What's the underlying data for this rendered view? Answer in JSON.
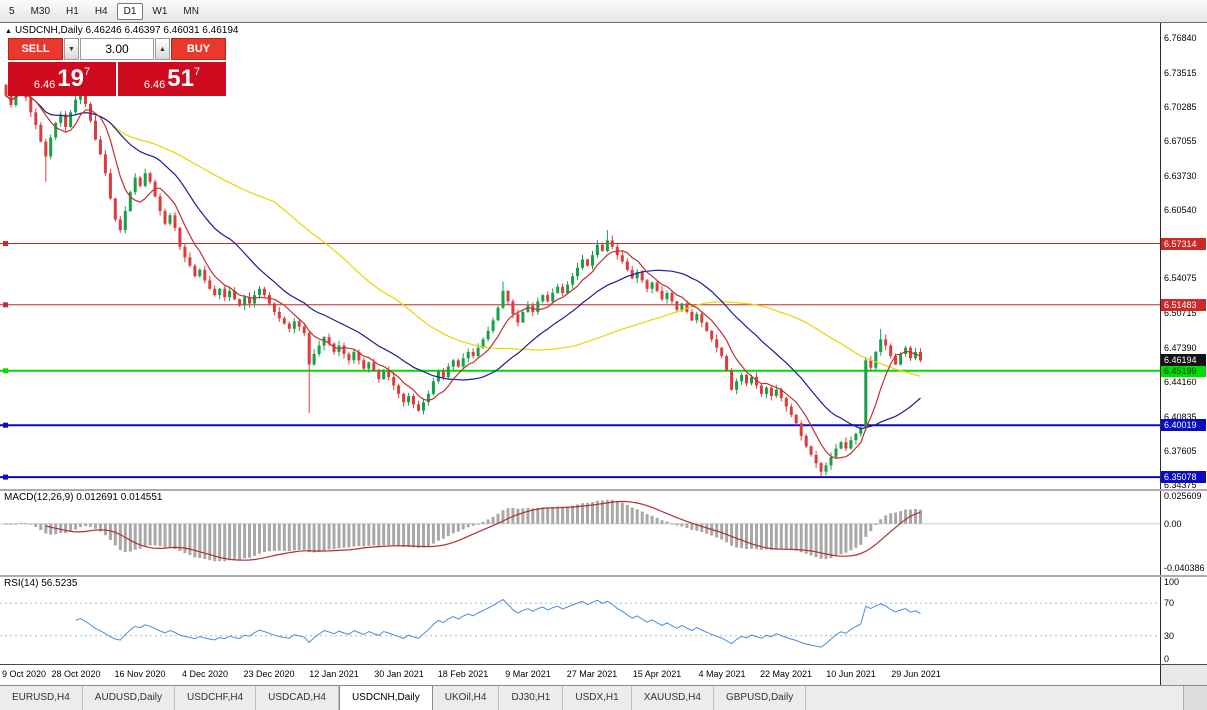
{
  "toolbar": {
    "timeframes": [
      {
        "label": "5",
        "active": false
      },
      {
        "label": "M30",
        "active": false
      },
      {
        "label": "H1",
        "active": false
      },
      {
        "label": "H4",
        "active": false
      },
      {
        "label": "D1",
        "active": true
      },
      {
        "label": "W1",
        "active": false
      },
      {
        "label": "MN",
        "active": false
      }
    ]
  },
  "chart": {
    "collapse_icon": "▲",
    "symbol_header": "USDCNH,Daily",
    "ohlc": "6.46246 6.46397 6.46031 6.46194",
    "trade_panel": {
      "sell_label": "SELL",
      "buy_label": "BUY",
      "volume": "3.00",
      "spin_down_icon": "▼",
      "spin_up_icon": "▲",
      "sell_price": {
        "prefix": "6.46",
        "big": "19",
        "sup": "7"
      },
      "buy_price": {
        "prefix": "6.46",
        "big": "51",
        "sup": "7"
      }
    },
    "scale": {
      "min": 6.3395,
      "max": 6.783
    },
    "price_axis": {
      "ticks": [
        6.7684,
        6.73515,
        6.70285,
        6.67055,
        6.6373,
        6.6054,
        6.54075,
        6.50715,
        6.4739,
        6.4416,
        6.40835,
        6.37605,
        6.34375
      ],
      "current_badge": {
        "label": "6.46194",
        "price": 6.46194,
        "bg": "#111111",
        "fg": "#ffffff"
      },
      "level_badges": [
        {
          "label": "6.57314",
          "price": 6.57314,
          "bg": "#cc2929",
          "fg": "#ffffff"
        },
        {
          "label": "6.51483",
          "price": 6.51483,
          "bg": "#cc2929",
          "fg": "#ffffff"
        },
        {
          "label": "6.45199",
          "price": 6.45199,
          "bg": "#00dc00",
          "fg": "#003300"
        },
        {
          "label": "6.40019",
          "price": 6.40019,
          "bg": "#0a0ac0",
          "fg": "#ffffff"
        },
        {
          "label": "6.35078",
          "price": 6.35078,
          "bg": "#0a0ac0",
          "fg": "#ffffff"
        }
      ]
    },
    "hlines": [
      {
        "price": 6.57314,
        "color": "#cc2929",
        "width": 1
      },
      {
        "price": 6.51483,
        "color": "#cc2929",
        "width": 1
      },
      {
        "price": 6.45199,
        "color": "#00dc00",
        "width": 2
      },
      {
        "price": 6.40019,
        "color": "#0a0ac0",
        "width": 2
      },
      {
        "price": 6.35078,
        "color": "#0a0ac0",
        "width": 2
      }
    ],
    "candles": {
      "up_color": "#16a049",
      "down_color": "#dd3c3c",
      "first_open": 6.724,
      "closes": [
        6.714,
        6.705,
        6.718,
        6.726,
        6.712,
        6.698,
        6.686,
        6.67,
        6.656,
        6.674,
        6.688,
        6.696,
        6.684,
        6.698,
        6.71,
        6.718,
        6.706,
        6.69,
        6.672,
        6.658,
        6.64,
        6.616,
        6.596,
        6.586,
        6.604,
        6.622,
        6.636,
        6.628,
        6.64,
        6.632,
        6.618,
        6.604,
        6.592,
        6.6,
        6.588,
        6.57,
        6.56,
        6.552,
        6.542,
        6.548,
        6.538,
        6.53,
        6.524,
        6.53,
        6.522,
        6.528,
        6.52,
        6.514,
        6.522,
        6.516,
        6.524,
        6.53,
        6.524,
        6.516,
        6.508,
        6.502,
        6.497,
        6.492,
        6.499,
        6.494,
        6.488,
        6.458,
        6.468,
        6.476,
        6.484,
        6.478,
        6.47,
        6.476,
        6.468,
        6.462,
        6.47,
        6.462,
        6.454,
        6.46,
        6.452,
        6.444,
        6.452,
        6.446,
        6.438,
        6.43,
        6.422,
        6.428,
        6.42,
        6.414,
        6.422,
        6.43,
        6.442,
        6.452,
        6.446,
        6.456,
        6.462,
        6.456,
        6.464,
        6.47,
        6.466,
        6.474,
        6.482,
        6.49,
        6.5,
        6.512,
        6.528,
        6.518,
        6.506,
        6.498,
        6.508,
        6.514,
        6.508,
        6.518,
        6.524,
        6.518,
        6.526,
        6.532,
        6.526,
        6.534,
        6.542,
        6.55,
        6.558,
        6.552,
        6.562,
        6.572,
        6.566,
        6.576,
        6.57,
        6.562,
        6.556,
        6.548,
        6.54,
        6.546,
        6.538,
        6.53,
        6.536,
        6.528,
        6.52,
        6.526,
        6.518,
        6.51,
        6.516,
        6.508,
        6.5,
        6.506,
        6.498,
        6.49,
        6.482,
        6.474,
        6.466,
        6.452,
        6.434,
        6.442,
        6.448,
        6.44,
        6.446,
        6.438,
        6.43,
        6.436,
        6.428,
        6.434,
        6.426,
        6.418,
        6.41,
        6.402,
        6.39,
        6.38,
        6.372,
        6.364,
        6.356,
        6.362,
        6.37,
        6.378,
        6.384,
        6.378,
        6.386,
        6.392,
        6.398,
        6.462,
        6.455,
        6.47,
        6.482,
        6.476,
        6.466,
        6.458,
        6.468,
        6.474,
        6.464,
        6.47,
        6.46194
      ],
      "wick_overrides": {
        "3": {
          "high": 6.736
        },
        "8": {
          "low": 6.632
        },
        "61": {
          "low": 6.412
        },
        "100": {
          "high": 6.537
        },
        "121": {
          "high": 6.586
        },
        "164": {
          "low": 6.351
        },
        "176": {
          "high": 6.492
        }
      }
    },
    "mas": [
      {
        "period": 55,
        "color": "#e7d600"
      },
      {
        "period": 22,
        "color": "#1c1c96"
      },
      {
        "period": 7,
        "color": "#c22f2f"
      }
    ]
  },
  "macd": {
    "header": "MACD(12,26,9) 0.012691 0.014551",
    "params": {
      "fast": 12,
      "slow": 26,
      "signal": 9
    },
    "range": {
      "min": -0.047,
      "max": 0.03
    },
    "histogram_color": "#a8a8a8",
    "signal_color": "#b03030",
    "axis_labels": [
      {
        "text": "0.025609",
        "value": 0.025609
      },
      {
        "text": "0.00",
        "value": 0
      },
      {
        "text": "-0.040386",
        "value": -0.040386
      }
    ]
  },
  "rsi": {
    "header": "RSI(14) 56.5235",
    "period": 14,
    "line_color": "#4a90d8",
    "dashed_color": "#a8b8cc",
    "levels": [
      {
        "text": "100",
        "value": 100,
        "dashed": false
      },
      {
        "text": "70",
        "value": 70,
        "dashed": true
      },
      {
        "text": "30",
        "value": 30,
        "dashed": true
      },
      {
        "text": "0",
        "value": 0,
        "dashed": false
      }
    ]
  },
  "time_axis": {
    "labels": [
      {
        "text": "9 Oct 2020",
        "candle": 1
      },
      {
        "text": "28 Oct 2020",
        "candle": 14
      },
      {
        "text": "16 Nov 2020",
        "candle": 27
      },
      {
        "text": "4 Dec 2020",
        "candle": 40
      },
      {
        "text": "23 Dec 2020",
        "candle": 53
      },
      {
        "text": "12 Jan 2021",
        "candle": 66
      },
      {
        "text": "30 Jan 2021",
        "candle": 79
      },
      {
        "text": "18 Feb 2021",
        "candle": 92
      },
      {
        "text": "9 Mar 2021",
        "candle": 105
      },
      {
        "text": "27 Mar 2021",
        "candle": 118
      },
      {
        "text": "15 Apr 2021",
        "candle": 131
      },
      {
        "text": "4 May 2021",
        "candle": 144
      },
      {
        "text": "22 May 2021",
        "candle": 157
      },
      {
        "text": "10 Jun 2021",
        "candle": 170
      },
      {
        "text": "29 Jun 2021",
        "candle": 183
      }
    ]
  },
  "tabbar": {
    "tabs": [
      {
        "label": "EURUSD,H4",
        "active": false
      },
      {
        "label": "AUDUSD,Daily",
        "active": false
      },
      {
        "label": "USDCHF,H4",
        "active": false
      },
      {
        "label": "USDCAD,H4",
        "active": false
      },
      {
        "label": "USDCNH,Daily",
        "active": true
      },
      {
        "label": "UKOil,H4",
        "active": false
      },
      {
        "label": "DJ30,H1",
        "active": false
      },
      {
        "label": "USDX,H1",
        "active": false
      },
      {
        "label": "XAUUSD,H4",
        "active": false
      },
      {
        "label": "GBPUSD,Daily",
        "active": false
      }
    ]
  }
}
